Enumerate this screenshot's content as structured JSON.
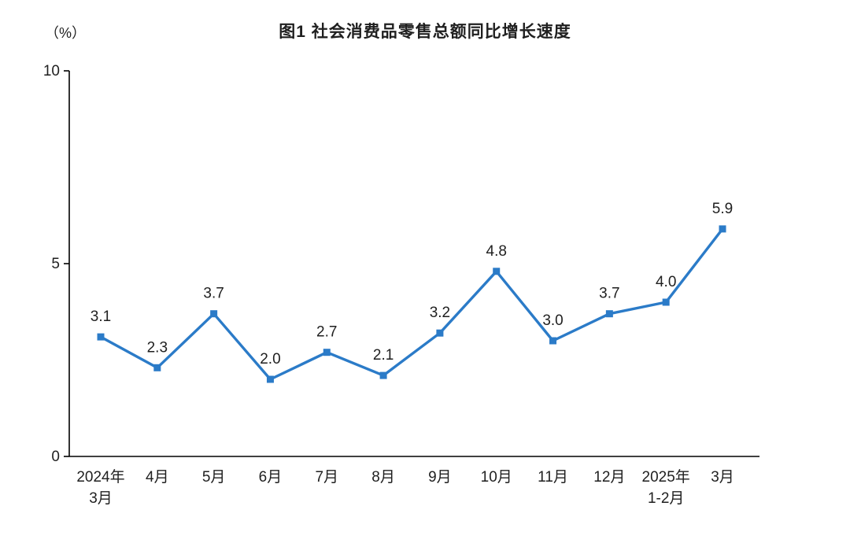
{
  "title": "图1  社会消费品零售总额同比增长速度",
  "unit_label": "（%）",
  "chart_data": {
    "type": "line",
    "title": "图1  社会消费品零售总额同比增长速度",
    "ylabel": "（%）",
    "xlabel": "",
    "categories": [
      "2024年\n3月",
      "4月",
      "5月",
      "6月",
      "7月",
      "8月",
      "9月",
      "10月",
      "11月",
      "12月",
      "2025年\n1-2月",
      "3月"
    ],
    "values": [
      3.1,
      2.3,
      3.7,
      2.0,
      2.7,
      2.1,
      3.2,
      4.8,
      3.0,
      3.7,
      4.0,
      5.9
    ],
    "ylim": [
      0,
      10
    ],
    "yticks": [
      0,
      5,
      10
    ],
    "grid": false,
    "legend": "none",
    "line_color": "#2b7bc8",
    "marker": "square",
    "axis_color": "#000000",
    "text_color": "#1f1f1f"
  }
}
